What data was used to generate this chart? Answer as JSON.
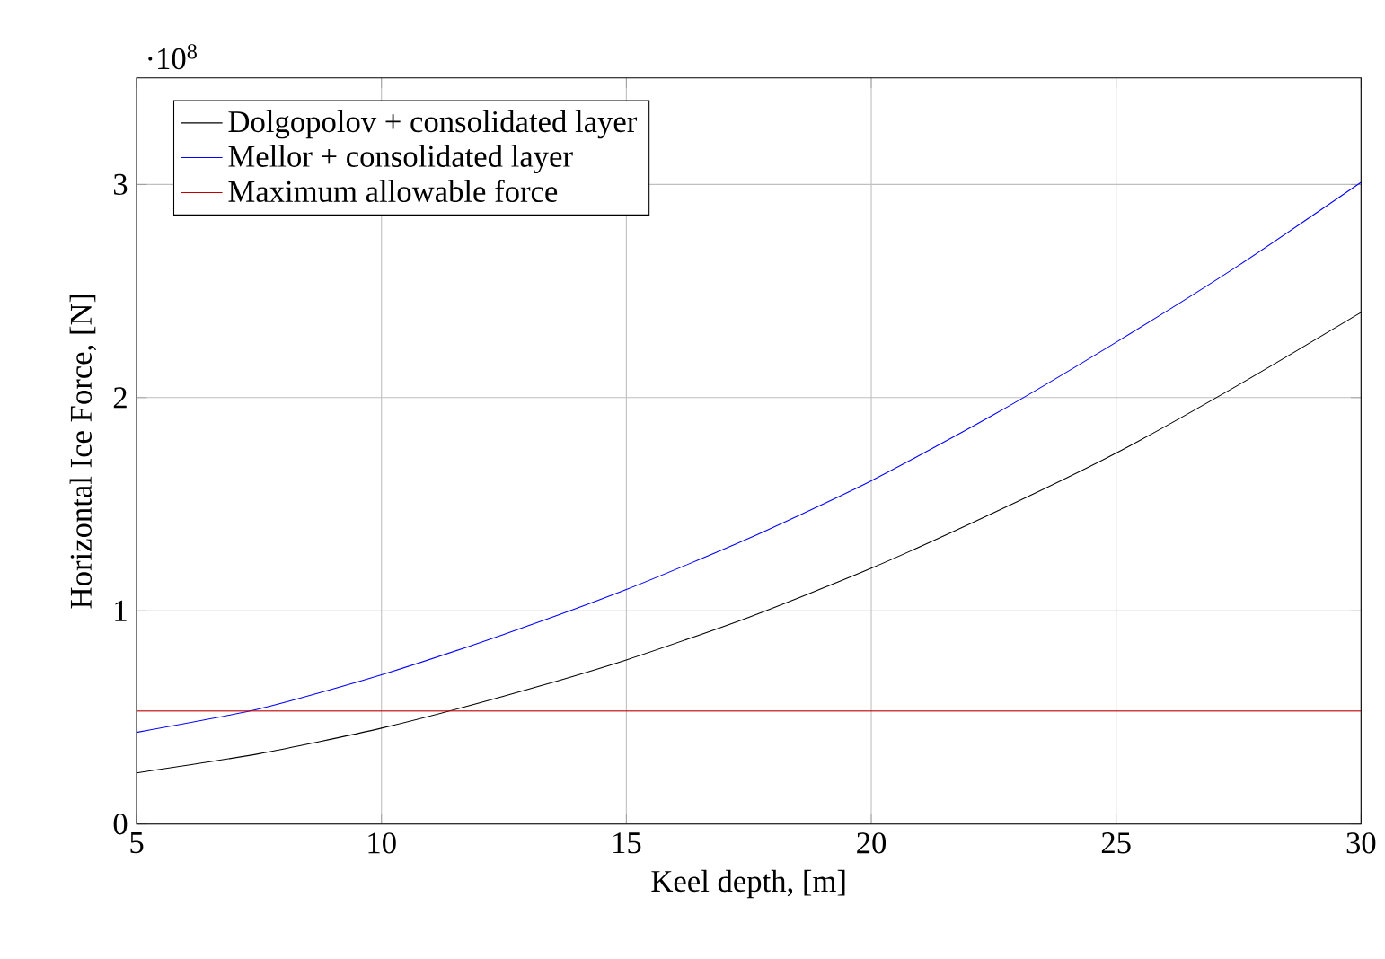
{
  "chart_data": {
    "type": "line",
    "xlabel": "Keel depth, [m]",
    "ylabel": "Horizontal Ice Force, [N]",
    "annotations": [
      "·10$^{8}$"
    ],
    "xlim": [
      5,
      30
    ],
    "ylim": [
      0,
      3.5
    ],
    "xticks": [
      5,
      10,
      15,
      20,
      25,
      30
    ],
    "yticks": [
      0,
      1,
      2,
      3
    ],
    "grid": true,
    "legend": "top left",
    "marker": "none",
    "line_style": "solid",
    "series": [
      {
        "name": "Dolgopolov + consolidated layer",
        "color": "#000000",
        "x": [
          5,
          7.5,
          10,
          12.5,
          15,
          17.5,
          20,
          22.5,
          25,
          27.5,
          30
        ],
        "values": [
          0.24,
          0.33,
          0.45,
          0.6,
          0.77,
          0.97,
          1.2,
          1.46,
          1.74,
          2.06,
          2.4
        ]
      },
      {
        "name": "Mellor + consolidated layer",
        "color": "#0000ff",
        "x": [
          5,
          7.5,
          10,
          12.5,
          15,
          17.5,
          20,
          22.5,
          25,
          27.5,
          30
        ],
        "values": [
          0.43,
          0.54,
          0.7,
          0.89,
          1.1,
          1.34,
          1.61,
          1.92,
          2.26,
          2.62,
          3.01
        ]
      },
      {
        "name": "Maximum allowable force",
        "color": "#c00000",
        "x": [
          5,
          30
        ],
        "values": [
          0.53,
          0.53
        ]
      }
    ]
  }
}
